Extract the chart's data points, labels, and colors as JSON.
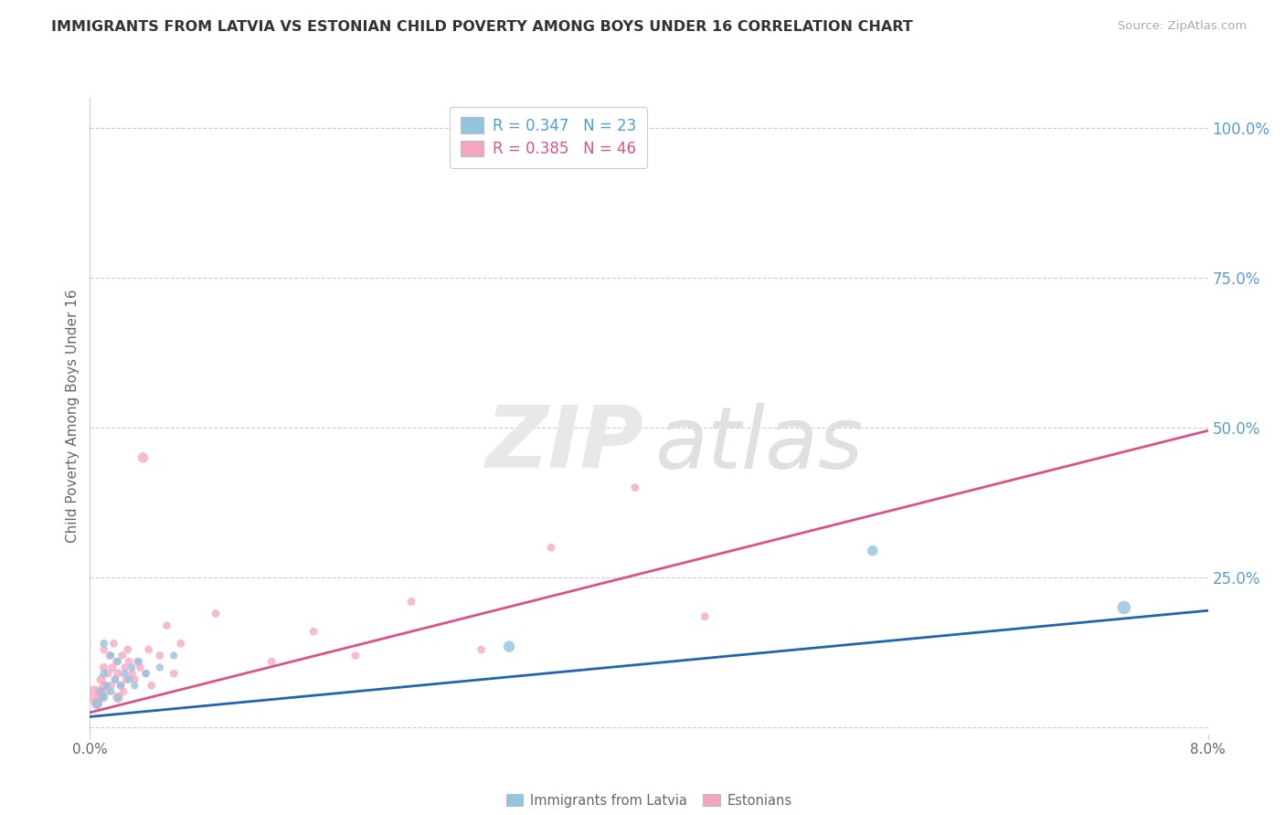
{
  "title": "IMMIGRANTS FROM LATVIA VS ESTONIAN CHILD POVERTY AMONG BOYS UNDER 16 CORRELATION CHART",
  "source": "Source: ZipAtlas.com",
  "ylabel": "Child Poverty Among Boys Under 16",
  "xlim": [
    0.0,
    0.08
  ],
  "ylim": [
    -0.01,
    1.05
  ],
  "ytick_vals": [
    0.0,
    0.25,
    0.5,
    0.75,
    1.0
  ],
  "ytick_labels": [
    "",
    "25.0%",
    "50.0%",
    "75.0%",
    "100.0%"
  ],
  "legend1_text": "R = 0.347   N = 23",
  "legend2_text": "R = 0.385   N = 46",
  "blue_scatter_color": "#92c5de",
  "pink_scatter_color": "#f4a5c0",
  "blue_line_color": "#2166ac",
  "pink_line_color": "#d6548a",
  "blue_trend_x": [
    0.0,
    0.08
  ],
  "blue_trend_y": [
    0.018,
    0.195
  ],
  "pink_trend_x": [
    0.0,
    0.08
  ],
  "pink_trend_y": [
    0.025,
    0.495
  ],
  "blue_x": [
    0.0005,
    0.0008,
    0.001,
    0.001,
    0.001,
    0.0012,
    0.0015,
    0.0015,
    0.0018,
    0.002,
    0.002,
    0.0022,
    0.0025,
    0.0028,
    0.003,
    0.0032,
    0.0035,
    0.004,
    0.005,
    0.006,
    0.03,
    0.056,
    0.074
  ],
  "blue_y": [
    0.04,
    0.06,
    0.05,
    0.09,
    0.14,
    0.07,
    0.06,
    0.12,
    0.08,
    0.05,
    0.11,
    0.07,
    0.09,
    0.08,
    0.1,
    0.07,
    0.11,
    0.09,
    0.1,
    0.12,
    0.135,
    0.295,
    0.2
  ],
  "blue_sizes": [
    60,
    40,
    40,
    40,
    40,
    35,
    35,
    35,
    35,
    35,
    35,
    35,
    35,
    35,
    35,
    35,
    35,
    35,
    35,
    35,
    80,
    70,
    110
  ],
  "pink_x": [
    0.0003,
    0.0005,
    0.0007,
    0.0008,
    0.0009,
    0.001,
    0.001,
    0.001,
    0.0012,
    0.0013,
    0.0014,
    0.0015,
    0.0016,
    0.0017,
    0.0018,
    0.0019,
    0.002,
    0.002,
    0.0022,
    0.0023,
    0.0024,
    0.0025,
    0.0026,
    0.0027,
    0.0028,
    0.003,
    0.0032,
    0.0034,
    0.0036,
    0.0038,
    0.004,
    0.0042,
    0.0044,
    0.005,
    0.0055,
    0.006,
    0.0065,
    0.009,
    0.013,
    0.016,
    0.019,
    0.023,
    0.028,
    0.033,
    0.039,
    0.044
  ],
  "pink_y": [
    0.055,
    0.04,
    0.06,
    0.08,
    0.05,
    0.07,
    0.1,
    0.13,
    0.06,
    0.09,
    0.12,
    0.07,
    0.1,
    0.14,
    0.08,
    0.11,
    0.05,
    0.09,
    0.07,
    0.12,
    0.06,
    0.1,
    0.08,
    0.13,
    0.11,
    0.09,
    0.08,
    0.11,
    0.1,
    0.45,
    0.09,
    0.13,
    0.07,
    0.12,
    0.17,
    0.09,
    0.14,
    0.19,
    0.11,
    0.16,
    0.12,
    0.21,
    0.13,
    0.3,
    0.4,
    0.185
  ],
  "pink_sizes": [
    200,
    80,
    60,
    55,
    50,
    50,
    45,
    40,
    45,
    40,
    40,
    40,
    40,
    40,
    40,
    40,
    70,
    50,
    45,
    40,
    40,
    40,
    40,
    40,
    40,
    45,
    40,
    40,
    40,
    70,
    40,
    40,
    40,
    40,
    40,
    40,
    40,
    40,
    40,
    40,
    40,
    40,
    40,
    40,
    40,
    40
  ]
}
